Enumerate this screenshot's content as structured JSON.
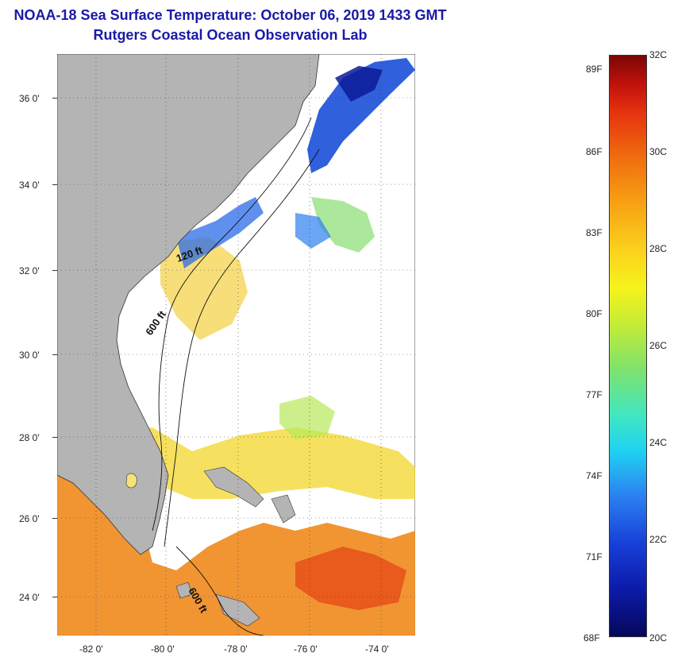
{
  "title": {
    "line1": "NOAA-18 Sea Surface Temperature:  October 06, 2019 1433 GMT",
    "line2": "Rutgers Coastal Ocean Observation Lab"
  },
  "axes": {
    "lat_labels": [
      "36 0'",
      "34 0'",
      "32 0'",
      "30 0'",
      "28 0'",
      "26 0'",
      "24 0'"
    ],
    "lon_labels": [
      "-82 0'",
      "-80 0'",
      "-78 0'",
      "-76 0'",
      "-74 0'"
    ]
  },
  "contours": [
    "120 ft",
    "600 ft",
    "600 ft"
  ],
  "colorbar": {
    "fahrenheit": [
      "89F",
      "86F",
      "83F",
      "80F",
      "77F",
      "74F",
      "71F",
      "68F"
    ],
    "celsius": [
      "32C",
      "30C",
      "28C",
      "26C",
      "24C",
      "22C",
      "20C"
    ]
  },
  "colors": {
    "land": "#b4b4b4",
    "title": "#1a1aa6",
    "warm": "#f07a14",
    "cool": "#1236c8"
  }
}
